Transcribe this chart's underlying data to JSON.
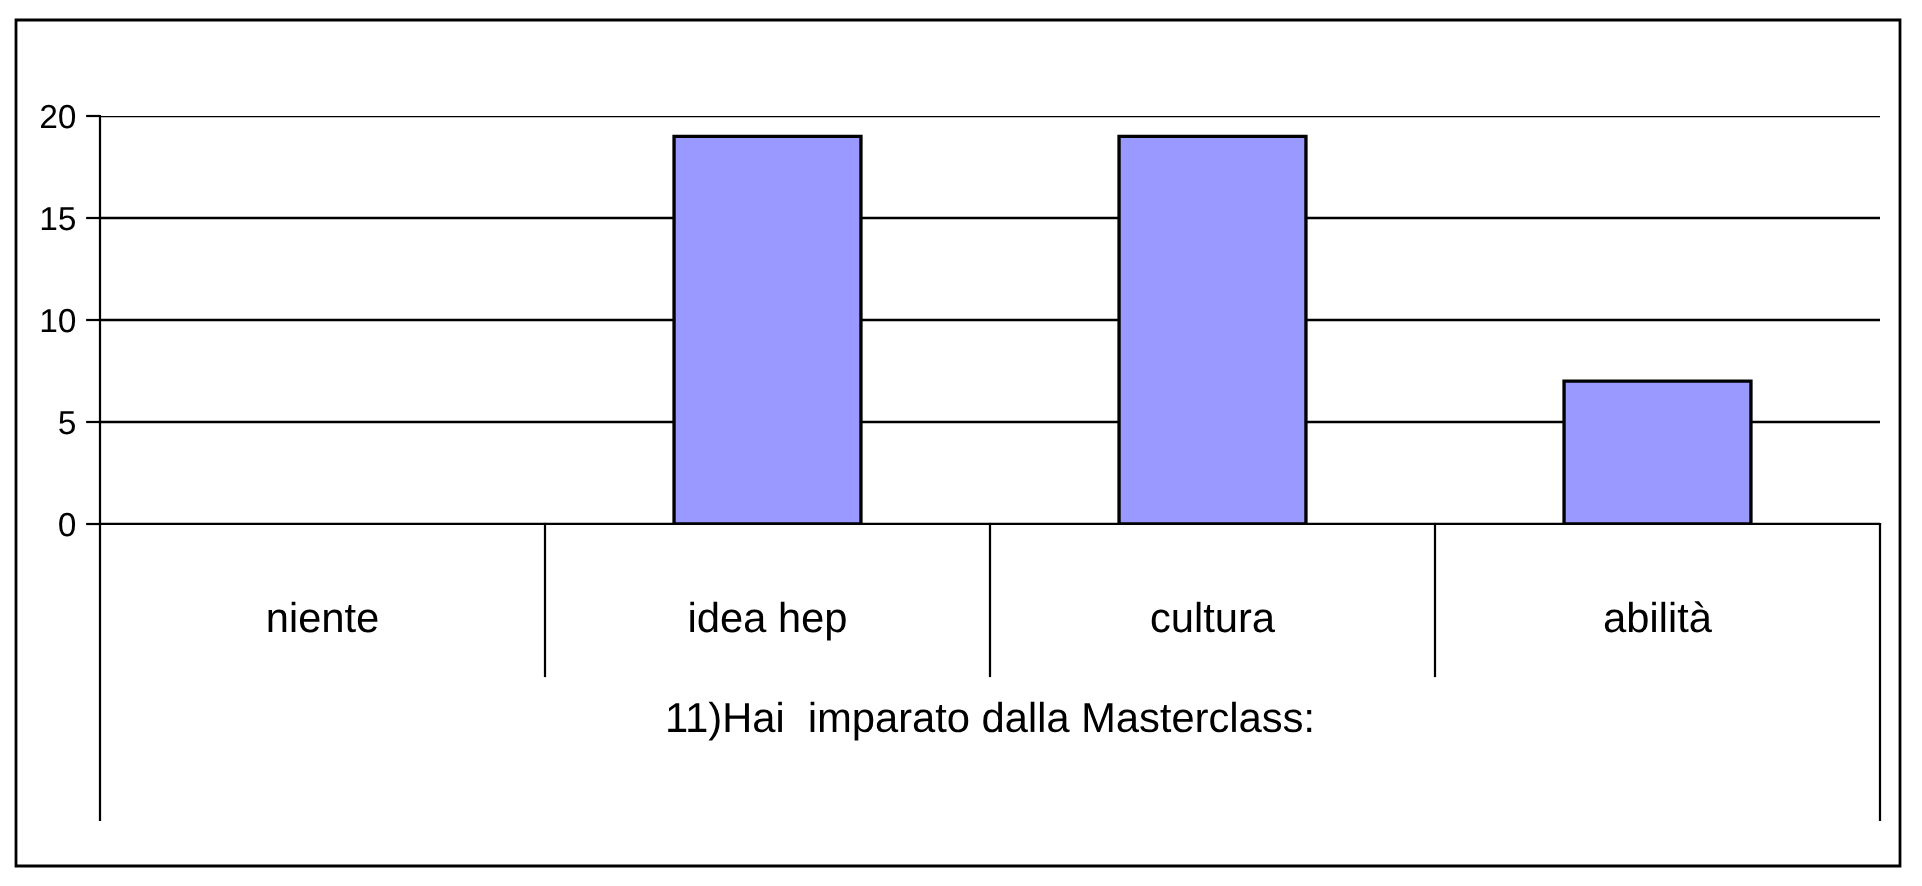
{
  "chart_data": {
    "type": "bar",
    "xlabel": "11)Hai  imparato dalla Masterclass:",
    "categories": [
      "niente",
      "idea hep",
      "cultura",
      "abilità"
    ],
    "values": [
      0,
      19,
      19,
      7
    ],
    "color": "#9999ff",
    "ylim": [
      0,
      20
    ],
    "yticks": [
      0,
      5,
      10,
      15,
      20
    ],
    "grid": "y",
    "legend": false
  }
}
